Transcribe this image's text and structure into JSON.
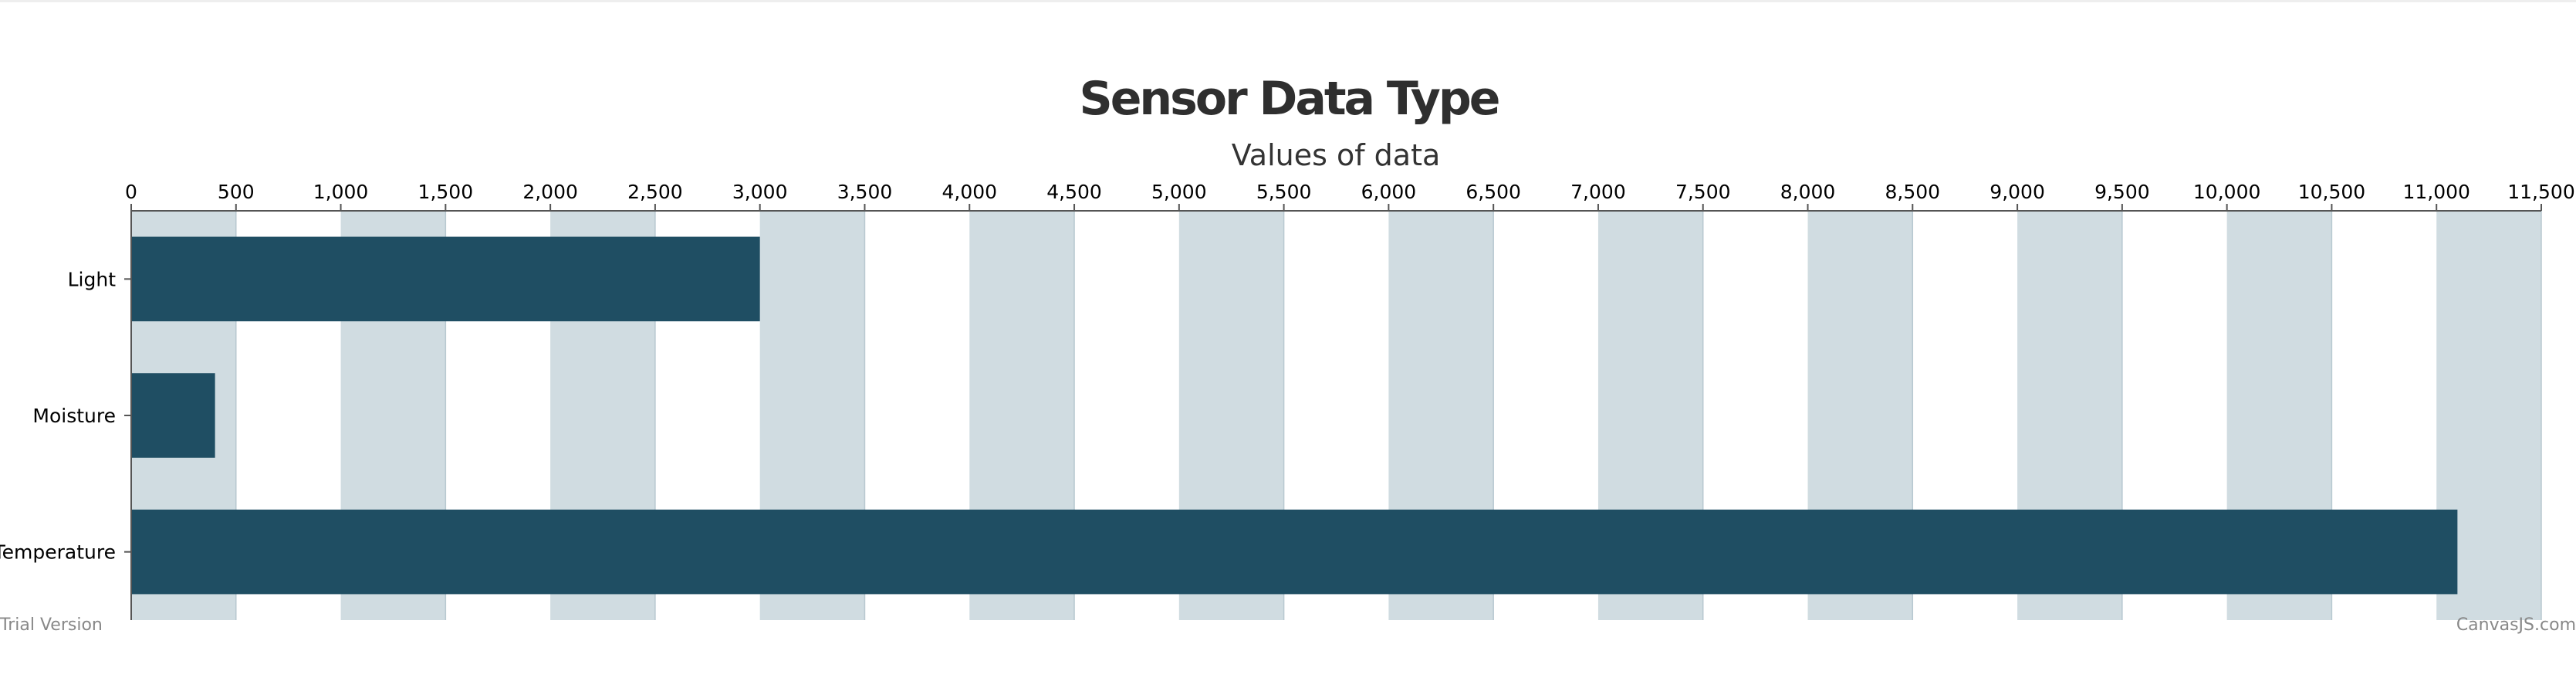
{
  "chart_data": {
    "type": "bar",
    "orientation": "horizontal",
    "title": "Sensor Data Type",
    "xlabel": "Values of data",
    "ylabel": "",
    "categories": [
      "Light",
      "Moisture",
      "Temperature"
    ],
    "values": [
      3000,
      400,
      11100
    ],
    "xlim": [
      0,
      11500
    ],
    "tick_interval": 500,
    "tick_labels": [
      "0",
      "500",
      "1,000",
      "1,500",
      "2,000",
      "2,500",
      "3,000",
      "3,500",
      "4,000",
      "4,500",
      "5,000",
      "5,500",
      "6,000",
      "6,500",
      "7,000",
      "7,500",
      "8,000",
      "8,500",
      "9,000",
      "9,500",
      "10,000",
      "10,500",
      "11,000",
      "11,500"
    ],
    "axis_position": "top",
    "alternating_bands": true,
    "legend": "none"
  },
  "colors": {
    "bar": "#1f4e63",
    "band": "#d0dce1",
    "band_line": "#b8c8d0",
    "axis": "#555555"
  },
  "credits": {
    "left": "Trial Version",
    "right": "CanvasJS.com"
  }
}
